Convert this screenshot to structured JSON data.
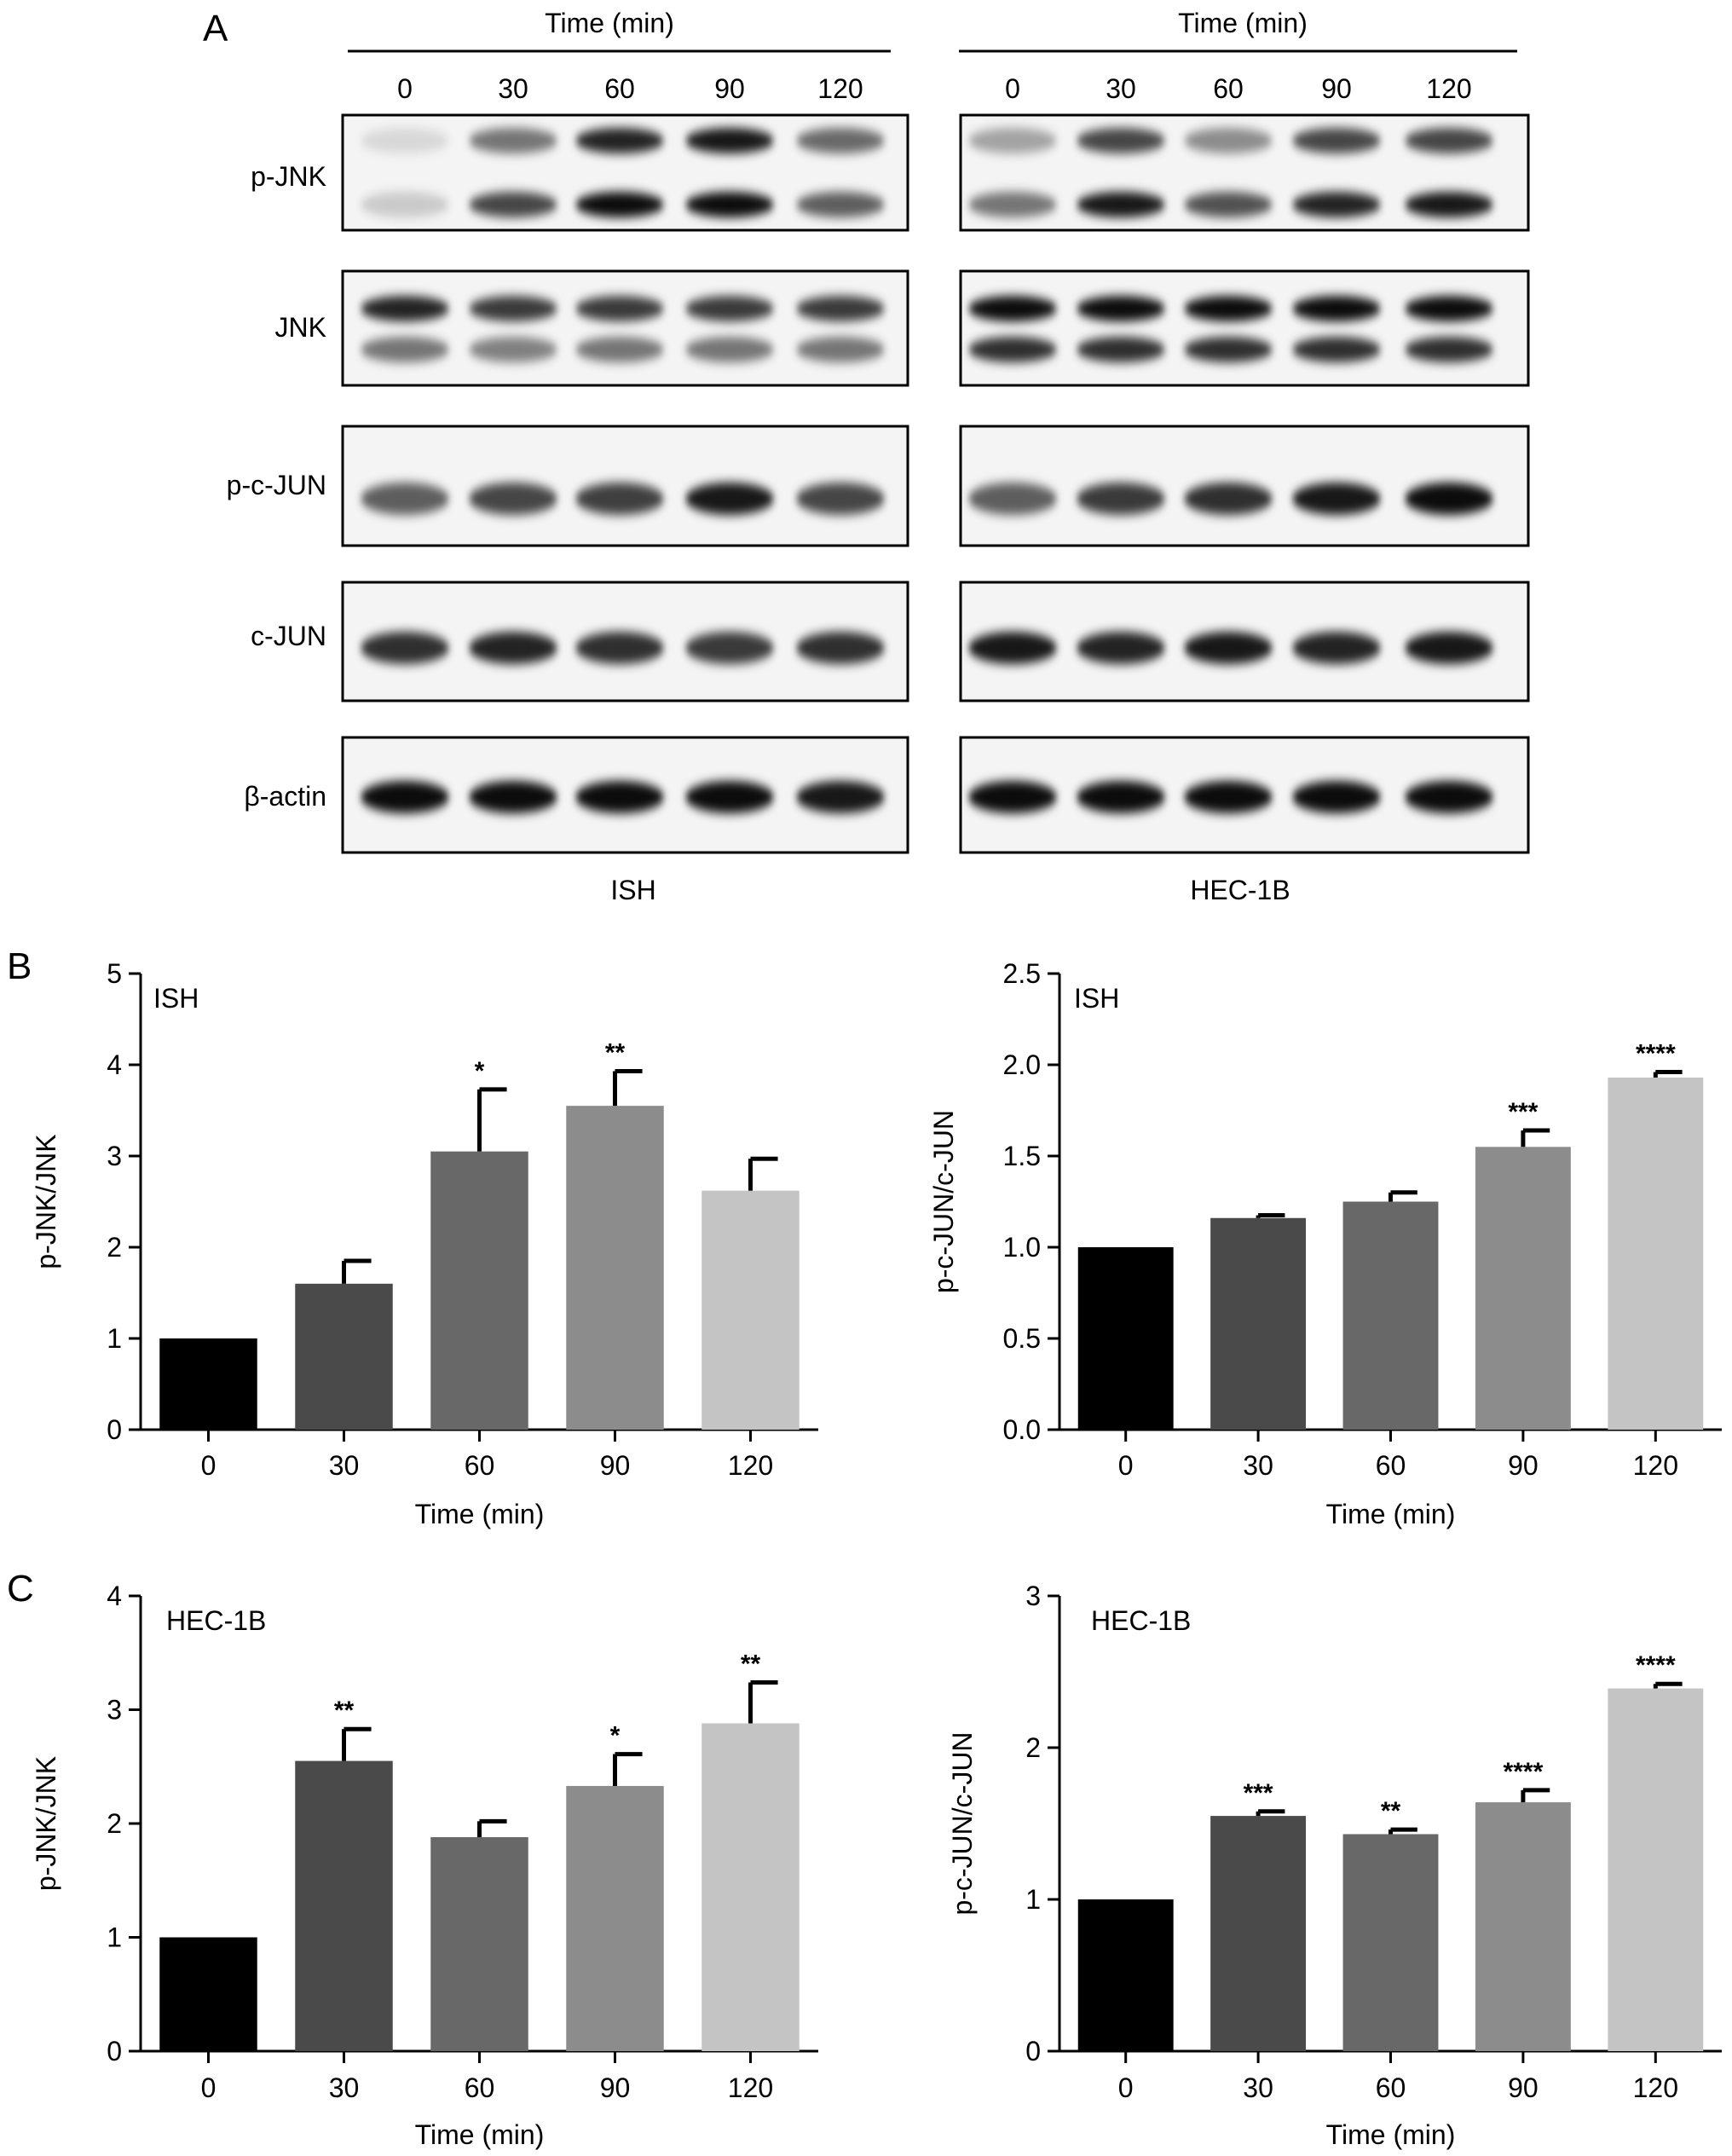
{
  "panel_letters": {
    "a": "A",
    "b": "B",
    "c": "C"
  },
  "blot": {
    "header": "Time (min)",
    "lanes": [
      "0",
      "30",
      "60",
      "90",
      "120"
    ],
    "rows": [
      "p-JNK",
      "JNK",
      "p-c-JUN",
      "c-JUN",
      "β-actin"
    ],
    "cell_lines": [
      "ISH",
      "HEC-1B"
    ],
    "band_intensity": {
      "ISH": {
        "p-JNK": [
          [
            0.12,
            0.18
          ],
          [
            0.55,
            0.75
          ],
          [
            0.9,
            1.0
          ],
          [
            0.95,
            1.0
          ],
          [
            0.6,
            0.65
          ]
        ],
        "JNK": [
          [
            0.9,
            0.55
          ],
          [
            0.8,
            0.5
          ],
          [
            0.8,
            0.55
          ],
          [
            0.8,
            0.55
          ],
          [
            0.8,
            0.55
          ]
        ],
        "p-c-JUN": [
          [
            0.65
          ],
          [
            0.75
          ],
          [
            0.78
          ],
          [
            0.95
          ],
          [
            0.75
          ]
        ],
        "c-JUN": [
          [
            0.85
          ],
          [
            0.9
          ],
          [
            0.85
          ],
          [
            0.8
          ],
          [
            0.85
          ]
        ],
        "β-actin": [
          [
            1.0
          ],
          [
            1.0
          ],
          [
            1.0
          ],
          [
            1.0
          ],
          [
            0.95
          ]
        ]
      },
      "HEC-1B": {
        "p-JNK": [
          [
            0.35,
            0.55
          ],
          [
            0.75,
            0.95
          ],
          [
            0.45,
            0.7
          ],
          [
            0.75,
            0.9
          ],
          [
            0.75,
            0.95
          ]
        ],
        "JNK": [
          [
            1.0,
            0.85
          ],
          [
            1.0,
            0.85
          ],
          [
            1.0,
            0.85
          ],
          [
            1.0,
            0.85
          ],
          [
            1.0,
            0.85
          ]
        ],
        "p-c-JUN": [
          [
            0.65
          ],
          [
            0.8
          ],
          [
            0.85
          ],
          [
            0.95
          ],
          [
            1.0
          ]
        ],
        "c-JUN": [
          [
            0.95
          ],
          [
            0.9
          ],
          [
            0.95
          ],
          [
            0.9
          ],
          [
            0.95
          ]
        ],
        "β-actin": [
          [
            1.0
          ],
          [
            1.0
          ],
          [
            1.0
          ],
          [
            1.0
          ],
          [
            1.0
          ]
        ]
      }
    }
  },
  "chart_data": [
    {
      "type": "bar",
      "title": "ISH",
      "xlabel": "Time (min)",
      "ylabel": "p-JNK/JNK",
      "categories": [
        "0",
        "30",
        "60",
        "90",
        "120"
      ],
      "values": [
        1.0,
        1.6,
        3.05,
        3.55,
        2.62
      ],
      "errors": [
        0,
        0.25,
        0.68,
        0.38,
        0.35
      ],
      "significance": [
        "",
        "",
        "*",
        "**",
        ""
      ],
      "ylim": [
        0,
        5
      ],
      "yticks": [
        "0",
        "1",
        "2",
        "3",
        "4",
        "5"
      ],
      "colors": [
        "#000000",
        "#4a4a4a",
        "#686868",
        "#8c8c8c",
        "#c4c4c4"
      ]
    },
    {
      "type": "bar",
      "title": "ISH",
      "xlabel": "Time (min)",
      "ylabel": "p-c-JUN/c-JUN",
      "categories": [
        "0",
        "30",
        "60",
        "90",
        "120"
      ],
      "values": [
        1.0,
        1.16,
        1.25,
        1.55,
        1.93
      ],
      "errors": [
        0,
        0.015,
        0.05,
        0.09,
        0.03
      ],
      "significance": [
        "",
        "",
        "",
        "***",
        "****"
      ],
      "ylim": [
        0,
        2.5
      ],
      "yticks": [
        "0.0",
        "0.5",
        "1.0",
        "1.5",
        "2.0",
        "2.5"
      ],
      "colors": [
        "#000000",
        "#4a4a4a",
        "#686868",
        "#8c8c8c",
        "#c4c4c4"
      ]
    },
    {
      "type": "bar",
      "title": "HEC-1B",
      "xlabel": "Time (min)",
      "ylabel": "p-JNK/JNK",
      "categories": [
        "0",
        "30",
        "60",
        "90",
        "120"
      ],
      "values": [
        1.0,
        2.55,
        1.88,
        2.33,
        2.88
      ],
      "errors": [
        0,
        0.28,
        0.14,
        0.28,
        0.36
      ],
      "significance": [
        "",
        "**",
        "",
        "*",
        "**"
      ],
      "ylim": [
        0,
        4
      ],
      "yticks": [
        "0",
        "1",
        "2",
        "3",
        "4"
      ],
      "colors": [
        "#000000",
        "#4a4a4a",
        "#686868",
        "#8c8c8c",
        "#c4c4c4"
      ]
    },
    {
      "type": "bar",
      "title": "HEC-1B",
      "xlabel": "Time (min)",
      "ylabel": "p-c-JUN/c-JUN",
      "categories": [
        "0",
        "30",
        "60",
        "90",
        "120"
      ],
      "values": [
        1.0,
        1.55,
        1.43,
        1.64,
        2.39
      ],
      "errors": [
        0,
        0.03,
        0.03,
        0.08,
        0.03
      ],
      "significance": [
        "",
        "***",
        "**",
        "****",
        "****"
      ],
      "ylim": [
        0,
        3
      ],
      "yticks": [
        "0",
        "1",
        "2",
        "3"
      ],
      "colors": [
        "#000000",
        "#4a4a4a",
        "#686868",
        "#8c8c8c",
        "#c4c4c4"
      ]
    }
  ]
}
